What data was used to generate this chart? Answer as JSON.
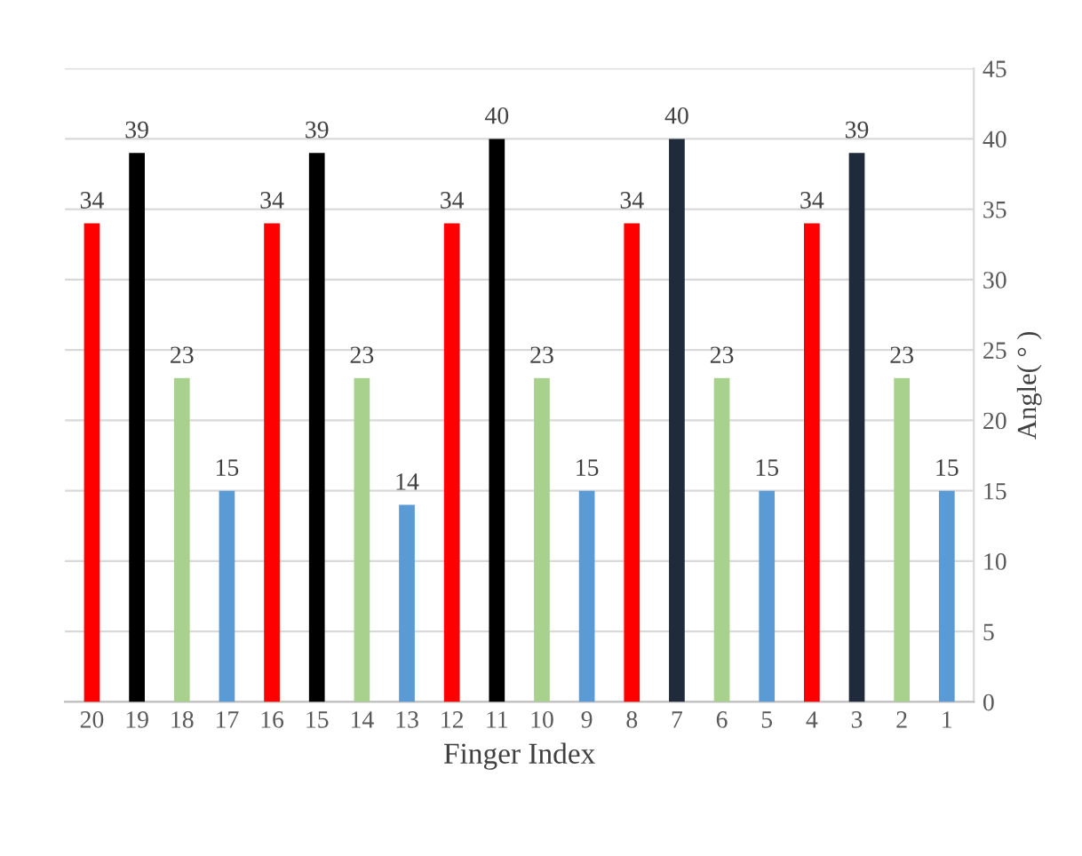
{
  "chart_data": {
    "type": "bar",
    "xlabel": "Finger Index",
    "ylabel": "Angle( ° )",
    "categories": [
      "20",
      "19",
      "18",
      "17",
      "16",
      "15",
      "14",
      "13",
      "12",
      "11",
      "10",
      "9",
      "8",
      "7",
      "6",
      "5",
      "4",
      "3",
      "2",
      "1"
    ],
    "values": [
      34,
      39,
      23,
      15,
      34,
      39,
      23,
      14,
      34,
      40,
      23,
      15,
      34,
      40,
      23,
      15,
      34,
      39,
      23,
      15
    ],
    "colors": [
      "#ff0000",
      "#000000",
      "#a9d18e",
      "#5b9bd5",
      "#ff0000",
      "#000000",
      "#a9d18e",
      "#5b9bd5",
      "#ff0000",
      "#000000",
      "#a9d18e",
      "#5b9bd5",
      "#ff0000",
      "#1f2a3a",
      "#a9d18e",
      "#5b9bd5",
      "#ff0000",
      "#1f2a3a",
      "#a9d18e",
      "#5b9bd5"
    ],
    "ylim": [
      0,
      45
    ],
    "yticks": [
      0,
      5,
      10,
      15,
      20,
      25,
      30,
      35,
      40,
      45
    ],
    "grid": "y",
    "data_labels": true,
    "legend": false
  }
}
